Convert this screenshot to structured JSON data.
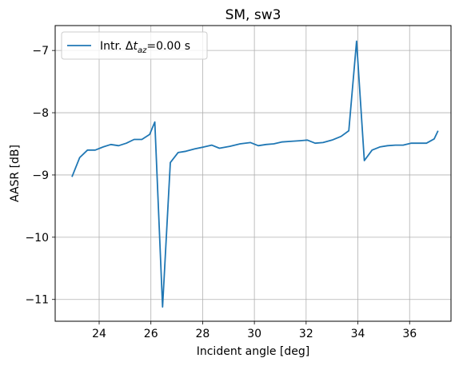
{
  "chart_data": {
    "type": "line",
    "title": "SM, sw3",
    "xlabel": "Incident angle [deg]",
    "ylabel": "AASR [dB]",
    "xlim": [
      22.3,
      37.6
    ],
    "ylim": [
      -11.35,
      -6.6
    ],
    "xticks": [
      24,
      26,
      28,
      30,
      32,
      34,
      36
    ],
    "yticks": [
      -11,
      -10,
      -9,
      -8,
      -7
    ],
    "grid": true,
    "legend_position": "top-left",
    "series": [
      {
        "name_prefix": "Intr. Δ",
        "name_italic": "t",
        "name_sub": "az",
        "name_suffix": "=0.00 s",
        "color": "#1f77b4",
        "x": [
          22.95,
          23.25,
          23.55,
          23.85,
          24.15,
          24.45,
          24.75,
          25.05,
          25.35,
          25.65,
          25.95,
          26.15,
          26.45,
          26.75,
          27.05,
          27.35,
          27.7,
          28.05,
          28.35,
          28.65,
          29.05,
          29.45,
          29.85,
          30.15,
          30.45,
          30.75,
          31.05,
          31.4,
          31.75,
          32.05,
          32.35,
          32.65,
          33.0,
          33.35,
          33.65,
          33.95,
          34.25,
          34.55,
          34.85,
          35.15,
          35.45,
          35.75,
          36.05,
          36.35,
          36.65,
          36.95,
          37.1
        ],
        "y": [
          -9.03,
          -8.72,
          -8.6,
          -8.6,
          -8.55,
          -8.51,
          -8.53,
          -8.49,
          -8.43,
          -8.43,
          -8.35,
          -8.15,
          -11.12,
          -8.8,
          -8.64,
          -8.62,
          -8.58,
          -8.55,
          -8.52,
          -8.57,
          -8.54,
          -8.5,
          -8.48,
          -8.53,
          -8.51,
          -8.5,
          -8.47,
          -8.46,
          -8.45,
          -8.44,
          -8.49,
          -8.48,
          -8.44,
          -8.38,
          -8.29,
          -6.85,
          -8.77,
          -8.6,
          -8.55,
          -8.53,
          -8.52,
          -8.52,
          -8.49,
          -8.49,
          -8.49,
          -8.42,
          -8.29
        ]
      }
    ]
  }
}
